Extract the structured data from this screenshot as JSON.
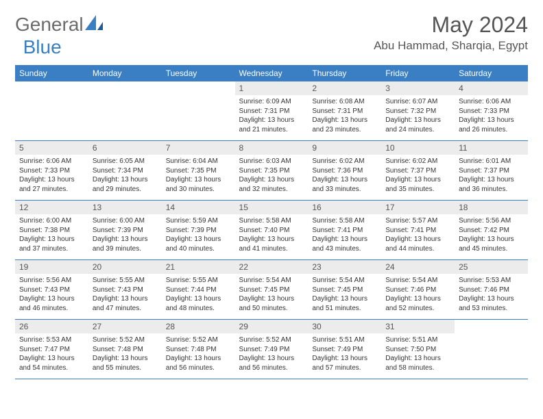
{
  "brand": {
    "part1": "General",
    "part2": "Blue"
  },
  "title": "May 2024",
  "location": "Abu Hammad, Sharqia, Egypt",
  "colors": {
    "header_bg": "#3a7fc4",
    "header_text": "#ffffff",
    "daynum_bg": "#ececec",
    "border": "#3a7fc4",
    "body_text": "#333333",
    "title_text": "#555555"
  },
  "weekdays": [
    "Sunday",
    "Monday",
    "Tuesday",
    "Wednesday",
    "Thursday",
    "Friday",
    "Saturday"
  ],
  "weeks": [
    [
      {
        "blank": true
      },
      {
        "blank": true
      },
      {
        "blank": true
      },
      {
        "day": "1",
        "sunrise": "Sunrise: 6:09 AM",
        "sunset": "Sunset: 7:31 PM",
        "daylight": "Daylight: 13 hours and 21 minutes."
      },
      {
        "day": "2",
        "sunrise": "Sunrise: 6:08 AM",
        "sunset": "Sunset: 7:31 PM",
        "daylight": "Daylight: 13 hours and 23 minutes."
      },
      {
        "day": "3",
        "sunrise": "Sunrise: 6:07 AM",
        "sunset": "Sunset: 7:32 PM",
        "daylight": "Daylight: 13 hours and 24 minutes."
      },
      {
        "day": "4",
        "sunrise": "Sunrise: 6:06 AM",
        "sunset": "Sunset: 7:33 PM",
        "daylight": "Daylight: 13 hours and 26 minutes."
      }
    ],
    [
      {
        "day": "5",
        "sunrise": "Sunrise: 6:06 AM",
        "sunset": "Sunset: 7:33 PM",
        "daylight": "Daylight: 13 hours and 27 minutes."
      },
      {
        "day": "6",
        "sunrise": "Sunrise: 6:05 AM",
        "sunset": "Sunset: 7:34 PM",
        "daylight": "Daylight: 13 hours and 29 minutes."
      },
      {
        "day": "7",
        "sunrise": "Sunrise: 6:04 AM",
        "sunset": "Sunset: 7:35 PM",
        "daylight": "Daylight: 13 hours and 30 minutes."
      },
      {
        "day": "8",
        "sunrise": "Sunrise: 6:03 AM",
        "sunset": "Sunset: 7:35 PM",
        "daylight": "Daylight: 13 hours and 32 minutes."
      },
      {
        "day": "9",
        "sunrise": "Sunrise: 6:02 AM",
        "sunset": "Sunset: 7:36 PM",
        "daylight": "Daylight: 13 hours and 33 minutes."
      },
      {
        "day": "10",
        "sunrise": "Sunrise: 6:02 AM",
        "sunset": "Sunset: 7:37 PM",
        "daylight": "Daylight: 13 hours and 35 minutes."
      },
      {
        "day": "11",
        "sunrise": "Sunrise: 6:01 AM",
        "sunset": "Sunset: 7:37 PM",
        "daylight": "Daylight: 13 hours and 36 minutes."
      }
    ],
    [
      {
        "day": "12",
        "sunrise": "Sunrise: 6:00 AM",
        "sunset": "Sunset: 7:38 PM",
        "daylight": "Daylight: 13 hours and 37 minutes."
      },
      {
        "day": "13",
        "sunrise": "Sunrise: 6:00 AM",
        "sunset": "Sunset: 7:39 PM",
        "daylight": "Daylight: 13 hours and 39 minutes."
      },
      {
        "day": "14",
        "sunrise": "Sunrise: 5:59 AM",
        "sunset": "Sunset: 7:39 PM",
        "daylight": "Daylight: 13 hours and 40 minutes."
      },
      {
        "day": "15",
        "sunrise": "Sunrise: 5:58 AM",
        "sunset": "Sunset: 7:40 PM",
        "daylight": "Daylight: 13 hours and 41 minutes."
      },
      {
        "day": "16",
        "sunrise": "Sunrise: 5:58 AM",
        "sunset": "Sunset: 7:41 PM",
        "daylight": "Daylight: 13 hours and 43 minutes."
      },
      {
        "day": "17",
        "sunrise": "Sunrise: 5:57 AM",
        "sunset": "Sunset: 7:41 PM",
        "daylight": "Daylight: 13 hours and 44 minutes."
      },
      {
        "day": "18",
        "sunrise": "Sunrise: 5:56 AM",
        "sunset": "Sunset: 7:42 PM",
        "daylight": "Daylight: 13 hours and 45 minutes."
      }
    ],
    [
      {
        "day": "19",
        "sunrise": "Sunrise: 5:56 AM",
        "sunset": "Sunset: 7:43 PM",
        "daylight": "Daylight: 13 hours and 46 minutes."
      },
      {
        "day": "20",
        "sunrise": "Sunrise: 5:55 AM",
        "sunset": "Sunset: 7:43 PM",
        "daylight": "Daylight: 13 hours and 47 minutes."
      },
      {
        "day": "21",
        "sunrise": "Sunrise: 5:55 AM",
        "sunset": "Sunset: 7:44 PM",
        "daylight": "Daylight: 13 hours and 48 minutes."
      },
      {
        "day": "22",
        "sunrise": "Sunrise: 5:54 AM",
        "sunset": "Sunset: 7:45 PM",
        "daylight": "Daylight: 13 hours and 50 minutes."
      },
      {
        "day": "23",
        "sunrise": "Sunrise: 5:54 AM",
        "sunset": "Sunset: 7:45 PM",
        "daylight": "Daylight: 13 hours and 51 minutes."
      },
      {
        "day": "24",
        "sunrise": "Sunrise: 5:54 AM",
        "sunset": "Sunset: 7:46 PM",
        "daylight": "Daylight: 13 hours and 52 minutes."
      },
      {
        "day": "25",
        "sunrise": "Sunrise: 5:53 AM",
        "sunset": "Sunset: 7:46 PM",
        "daylight": "Daylight: 13 hours and 53 minutes."
      }
    ],
    [
      {
        "day": "26",
        "sunrise": "Sunrise: 5:53 AM",
        "sunset": "Sunset: 7:47 PM",
        "daylight": "Daylight: 13 hours and 54 minutes."
      },
      {
        "day": "27",
        "sunrise": "Sunrise: 5:52 AM",
        "sunset": "Sunset: 7:48 PM",
        "daylight": "Daylight: 13 hours and 55 minutes."
      },
      {
        "day": "28",
        "sunrise": "Sunrise: 5:52 AM",
        "sunset": "Sunset: 7:48 PM",
        "daylight": "Daylight: 13 hours and 56 minutes."
      },
      {
        "day": "29",
        "sunrise": "Sunrise: 5:52 AM",
        "sunset": "Sunset: 7:49 PM",
        "daylight": "Daylight: 13 hours and 56 minutes."
      },
      {
        "day": "30",
        "sunrise": "Sunrise: 5:51 AM",
        "sunset": "Sunset: 7:49 PM",
        "daylight": "Daylight: 13 hours and 57 minutes."
      },
      {
        "day": "31",
        "sunrise": "Sunrise: 5:51 AM",
        "sunset": "Sunset: 7:50 PM",
        "daylight": "Daylight: 13 hours and 58 minutes."
      },
      {
        "blank": true
      }
    ]
  ]
}
